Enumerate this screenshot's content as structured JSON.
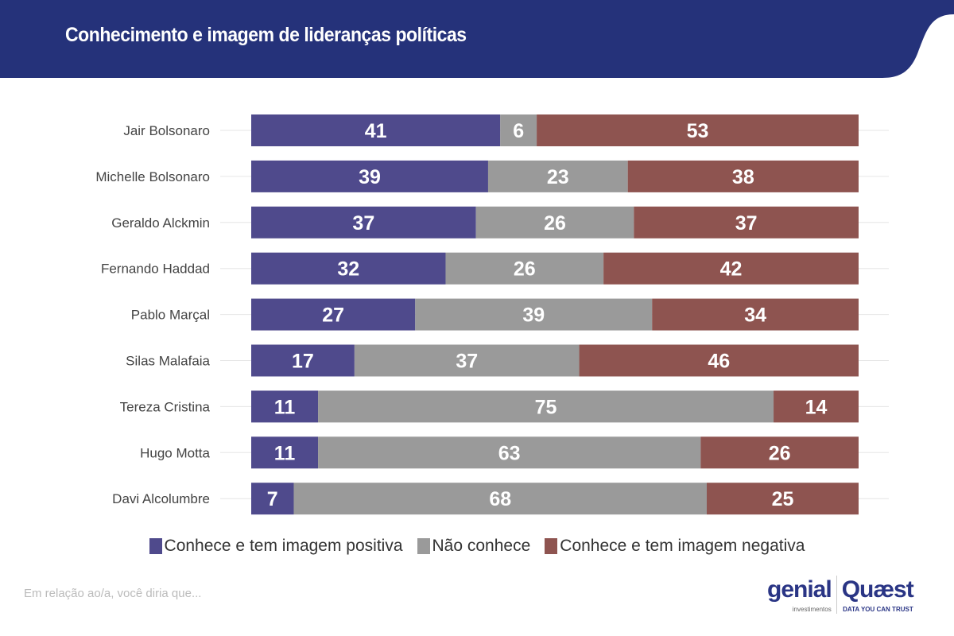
{
  "header": {
    "title": "Conhecimento e imagem de lideranças políticas"
  },
  "chart_data": {
    "type": "bar",
    "orientation": "horizontal-stacked-100",
    "title": "Conhecimento e imagem de lideranças políticas",
    "categories": [
      "Jair Bolsonaro",
      "Michelle Bolsonaro",
      "Geraldo Alckmin",
      "Fernando Haddad",
      "Pablo Marçal",
      "Silas Malafaia",
      "Tereza Cristina",
      "Hugo Motta",
      "Davi Alcolumbre"
    ],
    "series": [
      {
        "name": "Conhece e tem imagem positiva",
        "color": "#4f4a8c",
        "values": [
          41,
          39,
          37,
          32,
          27,
          17,
          11,
          11,
          7
        ]
      },
      {
        "name": "Não conhece",
        "color": "#9a9a9a",
        "values": [
          6,
          23,
          26,
          26,
          39,
          37,
          75,
          63,
          68
        ]
      },
      {
        "name": "Conhece e tem imagem negativa",
        "color": "#8e5450",
        "values": [
          53,
          38,
          37,
          42,
          34,
          46,
          14,
          26,
          25
        ]
      }
    ],
    "xlim": [
      0,
      100
    ],
    "legend": "bottom"
  },
  "footer": {
    "note": "Em relação ao/a, você diria que...",
    "logo1": "genial",
    "logo1_sub": "investimentos",
    "logo2": "Quæst",
    "logo2_sub": "DATA YOU CAN TRUST"
  },
  "colors": {
    "header": "#25327a"
  }
}
